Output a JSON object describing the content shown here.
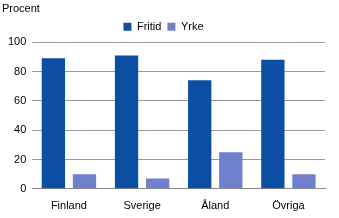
{
  "chart_data": {
    "type": "bar",
    "ylabel": "Procent",
    "categories": [
      "Finland",
      "Sverige",
      "Åland",
      "Övriga"
    ],
    "series": [
      {
        "name": "Fritid",
        "color": "#0b4ea2",
        "values": [
          89,
          91,
          74,
          88
        ]
      },
      {
        "name": "Yrke",
        "color": "#6f80cc",
        "values": [
          10,
          7,
          25,
          10
        ]
      }
    ],
    "ylim": [
      0,
      100
    ],
    "yticks": [
      0,
      20,
      40,
      60,
      80,
      100
    ],
    "grid": true,
    "legend": "top"
  }
}
